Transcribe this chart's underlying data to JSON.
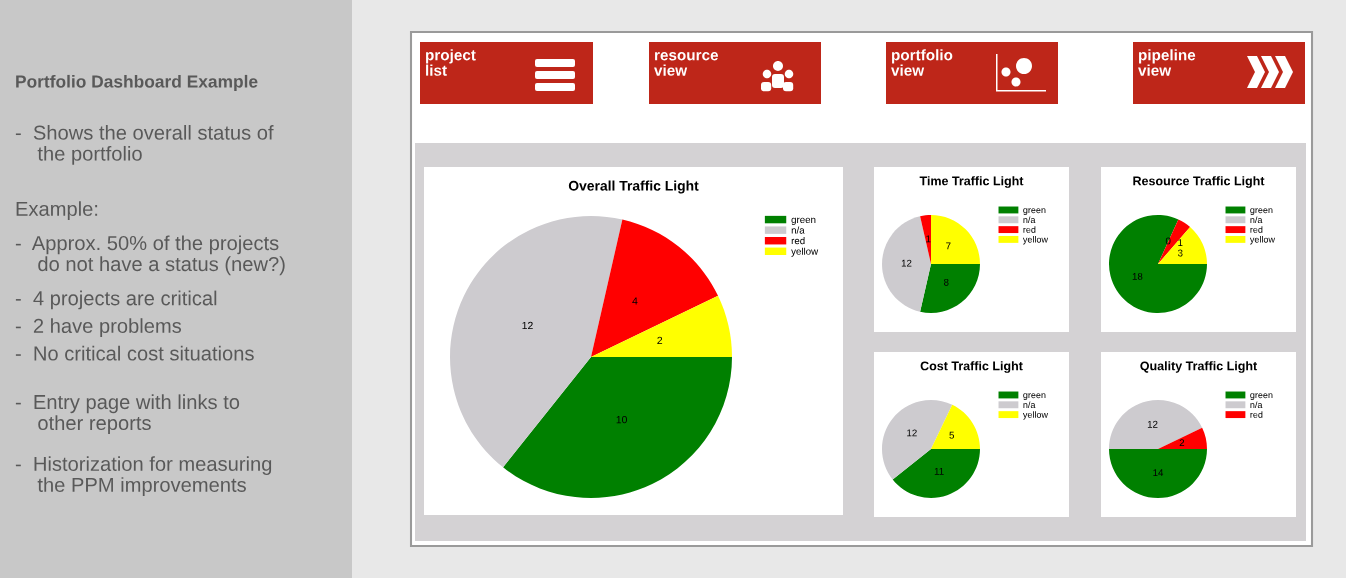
{
  "chart_data": [
    {
      "type": "other",
      "title": "Portfolio Dashboard Example",
      "annotations": [
        "-  Shows the overall status of\n    the portfolio",
        "\nExample:",
        "-  Approx. 50% of the projects\n    do not have a status (new?)",
        "-  4 projects are critical",
        "-  2 have problems",
        "-  No critical cost situations",
        "\n-  Entry page with links to\n    other reports",
        "-  Historization for measuring\n    the PPM improvements"
      ]
    },
    {
      "type": "other",
      "annotations": [
        "project\nlist",
        "resource\nview",
        "portfolio\nview",
        "pipeline\nview"
      ]
    },
    {
      "type": "pie",
      "title": "Overall Traffic Light",
      "categories": [
        "green",
        "n/a",
        "red",
        "yellow"
      ],
      "values": [
        10,
        12,
        4,
        2
      ],
      "colors": [
        "#008000",
        "#cdcbcf",
        "#ff0000",
        "#ffff00"
      ],
      "data_labels": true,
      "legend": "top right"
    },
    {
      "type": "pie",
      "title": "Time Traffic Light",
      "categories": [
        "green",
        "n/a",
        "red",
        "yellow"
      ],
      "values": [
        8,
        12,
        1,
        7
      ],
      "colors": [
        "#008000",
        "#cdcbcf",
        "#ff0000",
        "#ffff00"
      ],
      "data_labels": true,
      "legend": "top right"
    },
    {
      "type": "pie",
      "title": "Resource Traffic Light",
      "categories": [
        "green",
        "n/a",
        "red",
        "yellow"
      ],
      "values": [
        18,
        0,
        1,
        3
      ],
      "colors": [
        "#008000",
        "#cdcbcf",
        "#ff0000",
        "#ffff00"
      ],
      "value_labels": [
        "18",
        "0",
        "1",
        "3"
      ],
      "legend": "top right"
    },
    {
      "type": "pie",
      "title": "Cost Traffic Light",
      "categories": [
        "green",
        "n/a",
        "yellow"
      ],
      "values": [
        11,
        12,
        5
      ],
      "colors": [
        "#008000",
        "#cdcbcf",
        "#ffff00"
      ],
      "data_labels": true,
      "legend": "top right"
    },
    {
      "type": "pie",
      "title": "Quality Traffic Light",
      "categories": [
        "green",
        "n/a",
        "red"
      ],
      "values": [
        14,
        12,
        2
      ],
      "colors": [
        "#008000",
        "#cdcbcf",
        "#ff0000"
      ],
      "data_labels": true,
      "legend": "top right"
    }
  ]
}
